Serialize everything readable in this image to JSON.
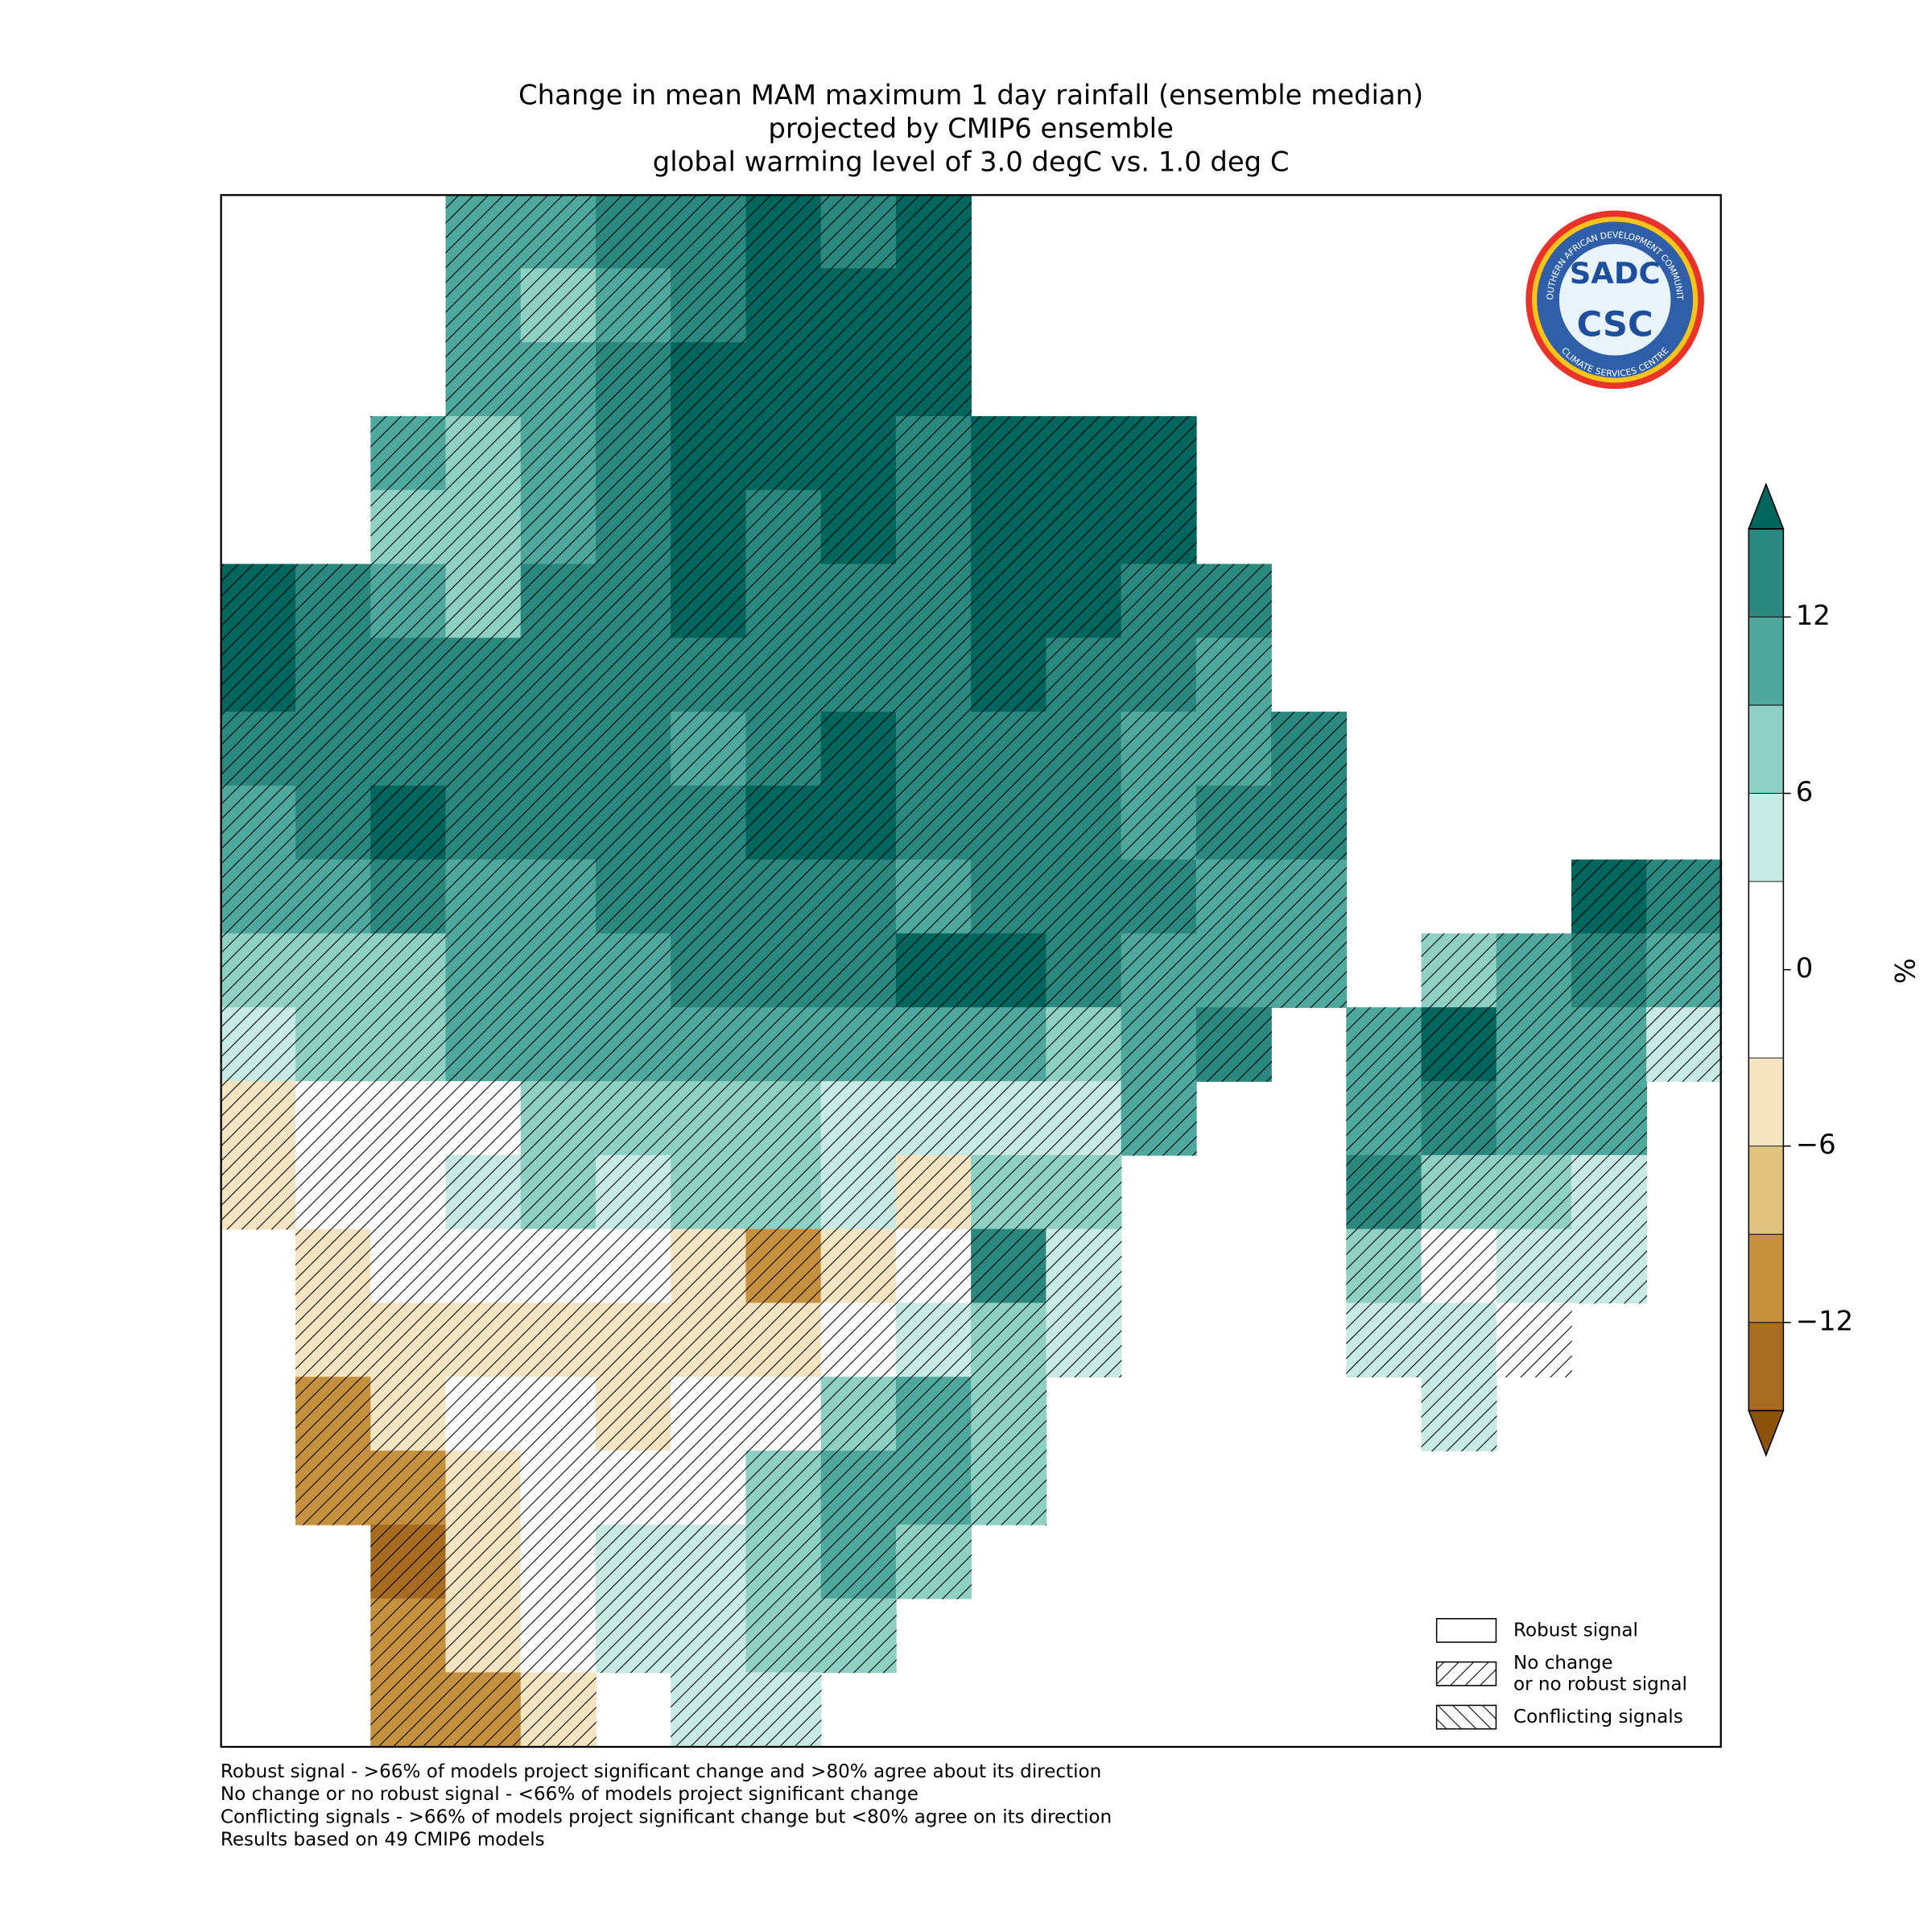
{
  "title": [
    "Change in mean MAM maximum 1 day rainfall (ensemble median)",
    "projected by CMIP6 ensemble",
    "global warming level of 3.0 degC vs. 1.0 deg C"
  ],
  "map": {
    "hatch": true,
    "grid": [
      [
        null,
        null,
        null,
        9,
        9,
        12,
        13,
        15,
        12,
        15,
        null,
        null,
        null,
        null,
        null,
        null,
        null,
        null,
        null,
        null
      ],
      [
        null,
        null,
        null,
        10,
        8,
        10,
        12,
        15,
        15,
        15,
        null,
        null,
        null,
        null,
        null,
        null,
        null,
        null,
        null,
        null
      ],
      [
        null,
        null,
        null,
        10,
        10,
        12,
        15,
        15,
        15,
        15,
        null,
        null,
        null,
        null,
        null,
        null,
        null,
        null,
        null,
        null
      ],
      [
        null,
        null,
        9,
        8,
        10,
        12,
        15,
        15,
        15,
        12,
        15,
        15,
        15,
        null,
        null,
        null,
        null,
        null,
        null,
        null
      ],
      [
        null,
        null,
        8,
        8,
        10,
        12,
        15,
        13,
        15,
        12,
        15,
        15,
        15,
        null,
        null,
        null,
        null,
        null,
        null,
        null
      ],
      [
        15,
        12,
        9,
        8,
        12,
        12,
        15,
        12,
        12,
        12,
        15,
        15,
        12,
        12,
        null,
        null,
        null,
        null,
        null,
        null
      ],
      [
        15,
        12,
        12,
        12,
        12,
        12,
        12,
        12,
        12,
        12,
        15,
        12,
        12,
        10,
        null,
        null,
        null,
        null,
        null,
        null
      ],
      [
        12,
        12,
        12,
        12,
        12,
        12,
        10,
        12,
        15,
        12,
        13,
        13,
        10,
        10,
        12,
        null,
        null,
        null,
        null,
        null
      ],
      [
        9,
        13,
        15,
        12,
        12,
        12,
        12,
        15,
        15,
        13,
        12,
        13,
        10,
        12,
        12,
        null,
        null,
        null,
        null,
        null
      ],
      [
        9,
        10,
        12,
        9,
        9,
        12,
        12,
        12,
        12,
        10,
        12,
        12,
        12,
        10,
        10,
        null,
        null,
        null,
        15,
        12
      ],
      [
        6,
        6,
        8,
        9,
        9,
        10,
        12,
        13,
        12,
        15,
        15,
        12,
        10,
        9,
        10,
        null,
        8,
        9,
        12,
        10
      ],
      [
        5,
        6,
        8,
        9,
        10,
        10,
        11,
        10,
        10,
        10,
        9,
        6,
        9,
        12,
        null,
        10,
        15,
        10,
        9,
        5
      ],
      [
        -4,
        2,
        1,
        2,
        6,
        8,
        6,
        6,
        4,
        4,
        5,
        3,
        9,
        null,
        null,
        10,
        12,
        10,
        9,
        null
      ],
      [
        -4,
        1,
        0,
        5,
        6,
        5,
        6,
        6,
        3,
        -4,
        6,
        6,
        null,
        null,
        null,
        12,
        6,
        6,
        5,
        null
      ],
      [
        null,
        -4,
        1,
        1,
        1,
        -3,
        -4,
        -10,
        -5,
        2,
        12,
        5,
        null,
        null,
        null,
        7,
        2,
        5,
        4,
        null
      ],
      [
        null,
        -4,
        -5,
        -4,
        -4,
        -5,
        -4,
        -4,
        2,
        5,
        6,
        4,
        null,
        null,
        null,
        3,
        5,
        2,
        null,
        null
      ],
      [
        null,
        -10,
        -5,
        1,
        1,
        -4,
        -3,
        2,
        8,
        9,
        7,
        null,
        null,
        null,
        null,
        null,
        5,
        null,
        null,
        null
      ],
      [
        null,
        -12,
        -12,
        -5,
        1,
        1,
        2,
        6,
        9,
        9,
        7,
        null,
        null,
        null,
        null,
        null,
        null,
        null,
        null,
        null
      ],
      [
        null,
        null,
        -13,
        -5,
        1,
        5,
        4,
        6,
        9,
        7,
        null,
        null,
        null,
        null,
        null,
        null,
        null,
        null,
        null,
        null
      ],
      [
        null,
        null,
        -10,
        -5,
        1,
        5,
        5,
        8,
        7,
        null,
        null,
        null,
        null,
        null,
        null,
        null,
        null,
        null,
        null,
        null
      ],
      [
        null,
        null,
        -10,
        -12,
        -5,
        null,
        5,
        5,
        null,
        null,
        null,
        null,
        null,
        null,
        null,
        null,
        null,
        null,
        null,
        null
      ]
    ]
  },
  "colorbar": {
    "label": "%",
    "boundaries": [
      -15,
      -12,
      -9,
      -6,
      -3,
      3,
      6,
      9,
      12,
      15
    ],
    "colors": [
      "#a86b22",
      "#c6913f",
      "#dfc27d",
      "#f5e4c2",
      "#ffffff",
      "#c7eae5",
      "#8ed1c4",
      "#4fa89e",
      "#2a887f"
    ],
    "under_color": "#8c510a",
    "over_color": "#01665e",
    "ticks": [
      {
        "value": -12,
        "label": "−12"
      },
      {
        "value": -6,
        "label": "−6"
      },
      0,
      6,
      12
    ]
  },
  "legend": [
    {
      "label": "Robust signal",
      "hatch": "none"
    },
    {
      "label": "No change\nor no robust signal",
      "hatch": "forward"
    },
    {
      "label": "Conflicting signals",
      "hatch": "back"
    }
  ],
  "footnotes": [
    "Robust signal - >66% of models project significant change and >80% agree about its direction",
    "No change or no robust signal - <66% of models project significant change",
    "Conflicting signals - >66% of models project significant change but <80% agree on its direction",
    "Results based on 49 CMIP6 models"
  ],
  "logo": {
    "top": "SADC",
    "main": "CSC",
    "ring_top": "SOUTHERN AFRICAN DEVELOPMENT COMMUNITY",
    "ring_bottom": "CLIMATE SERVICES CENTRE"
  }
}
